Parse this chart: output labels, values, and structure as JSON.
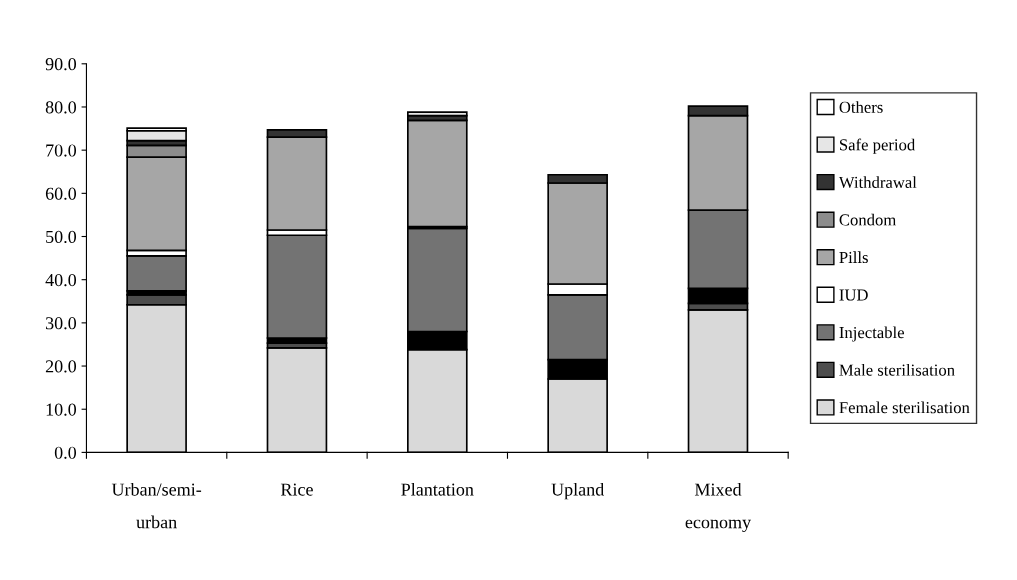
{
  "chart_data": {
    "type": "bar",
    "stacked": true,
    "categories": [
      "Urban/semi-\nurban",
      "Rice",
      "Plantation",
      "Upland",
      "Mixed\neconomy"
    ],
    "series": [
      {
        "name": "Female sterilisation",
        "color": "#d9d9d9",
        "values": [
          34.2,
          24.2,
          23.8,
          17.0,
          33.0
        ]
      },
      {
        "name": "Male sterilisation",
        "color": "#4d4d4d",
        "values": [
          2.3,
          1.1,
          0,
          0,
          1.5
        ]
      },
      {
        "color": "#000000",
        "values": [
          0.9,
          1.2,
          4.2,
          4.5,
          3.5
        ]
      },
      {
        "name": "Injectable",
        "color": "#737373",
        "values": [
          8.1,
          23.8,
          23.9,
          15.0,
          18.1
        ]
      },
      {
        "name": "IUD",
        "color": "#ffffff",
        "values": [
          1.3,
          1.2,
          0.4,
          2.5,
          0
        ]
      },
      {
        "name": "Pills",
        "color": "#a6a6a6",
        "values": [
          21.6,
          21.5,
          24.6,
          23.4,
          21.9
        ]
      },
      {
        "name": "Condom",
        "color": "#8c8c8c",
        "values": [
          2.7,
          0,
          0,
          0,
          0
        ]
      },
      {
        "name": "Withdrawal",
        "color": "#333333",
        "values": [
          1.1,
          1.7,
          1.1,
          1.9,
          2.2
        ]
      },
      {
        "name": "Safe period",
        "color": "#e6e6e6",
        "values": [
          2.3,
          0,
          0.8,
          0,
          0
        ]
      },
      {
        "name": "Others",
        "color": "#ffffff",
        "values": [
          0.6,
          0,
          0,
          0,
          0
        ]
      }
    ],
    "ylim": [
      0,
      90
    ],
    "yticks": [
      {
        "value": 0,
        "label": "0.0"
      },
      {
        "value": 10,
        "label": "10.0"
      },
      {
        "value": 20,
        "label": "20.0"
      },
      {
        "value": 30,
        "label": "30.0"
      },
      {
        "value": 40,
        "label": "40.0"
      },
      {
        "value": 50,
        "label": "50.0"
      },
      {
        "value": 60,
        "label": "60.0"
      },
      {
        "value": 70,
        "label": "70.0"
      },
      {
        "value": 80,
        "label": "80.0"
      },
      {
        "value": 90,
        "label": "90.0"
      }
    ],
    "grid": false,
    "legend": "right"
  }
}
